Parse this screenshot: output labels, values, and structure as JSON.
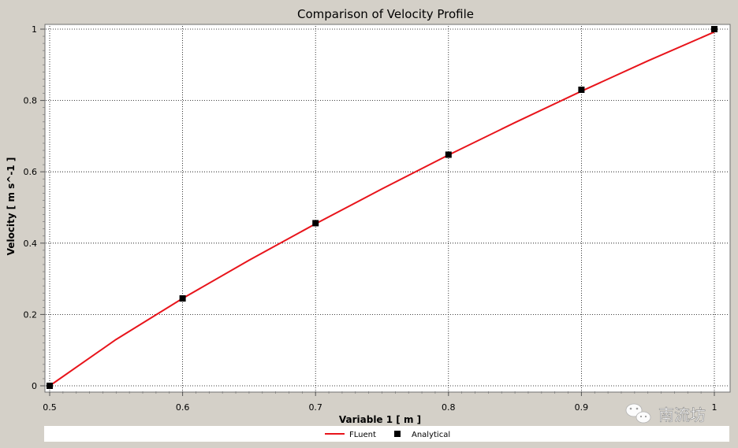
{
  "chart_data": {
    "type": "line",
    "title": "Comparison of Velocity Profile",
    "xlabel": "Variable 1 [ m ]",
    "ylabel": "Velocity [ m s^-1 ]",
    "xlim": [
      0.5,
      1.0
    ],
    "ylim": [
      0,
      1.0
    ],
    "xticks": [
      0.5,
      0.6,
      0.7,
      0.8,
      0.9,
      1.0
    ],
    "xtick_labels": [
      "0.5",
      "0.6",
      "0.7",
      "0.8",
      "0.9",
      "1"
    ],
    "yticks": [
      0,
      0.2,
      0.4,
      0.6,
      0.8,
      1.0
    ],
    "ytick_labels": [
      "0",
      "0.2",
      "0.4",
      "0.6",
      "0.8",
      "1"
    ],
    "grid": true,
    "legend_position": "bottom",
    "series": [
      {
        "name": "FLuent",
        "kind": "line",
        "color": "#e8141b",
        "x": [
          0.5,
          0.55,
          0.6,
          0.65,
          0.7,
          0.75,
          0.8,
          0.85,
          0.9,
          0.95,
          1.0
        ],
        "y": [
          0.0,
          0.13,
          0.245,
          0.352,
          0.454,
          0.552,
          0.647,
          0.738,
          0.826,
          0.911,
          0.992
        ]
      },
      {
        "name": "Analytical",
        "kind": "marker",
        "color": "#000000",
        "marker": "square",
        "x": [
          0.5,
          0.6,
          0.7,
          0.8,
          0.9,
          1.0
        ],
        "y": [
          0.0,
          0.245,
          0.456,
          0.648,
          0.83,
          1.0
        ]
      }
    ]
  },
  "watermark": {
    "icon": "wechat-icon",
    "text": "南流坊"
  }
}
